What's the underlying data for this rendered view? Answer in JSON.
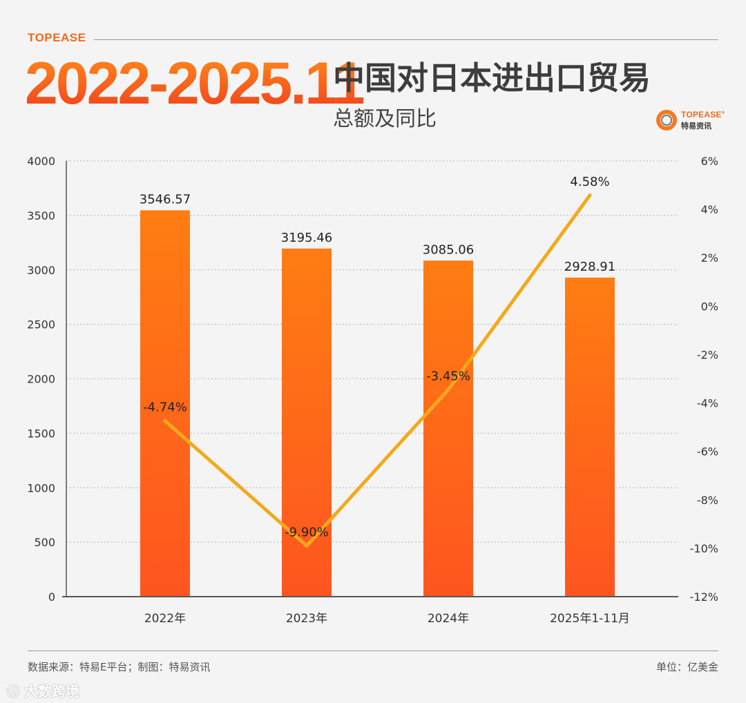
{
  "header": {
    "brand": "TOPEASE",
    "period": "2022-2025.11",
    "title": "中国对日本进出口贸易",
    "subtitle": "总额及同比",
    "logo_text": "TOPEASE",
    "logo_sub": "特易资讯"
  },
  "colors": {
    "bar_top": "#ff7d12",
    "bar_bottom": "#ff5520",
    "line": "#f4a91c",
    "accent": "#f26a1b"
  },
  "chart_data": {
    "type": "bar",
    "categories": [
      "2022年",
      "2023年",
      "2024年",
      "2025年1-11月"
    ],
    "series": [
      {
        "type": "bar",
        "axis": "left",
        "values": [
          3546.57,
          3195.46,
          3085.06,
          2928.91
        ],
        "labels": [
          "3546.57",
          "3195.46",
          "3085.06",
          "2928.91"
        ]
      },
      {
        "type": "line",
        "axis": "right",
        "values": [
          -4.74,
          -9.9,
          -3.45,
          4.58
        ],
        "labels": [
          "-4.74%",
          "-9.90%",
          "-3.45%",
          "4.58%"
        ]
      }
    ],
    "y_left": {
      "range": [
        0,
        4000
      ],
      "ticks": [
        "0",
        "500",
        "1000",
        "1500",
        "2000",
        "2500",
        "3000",
        "3500",
        "4000"
      ]
    },
    "y_right": {
      "range": [
        -12,
        6
      ],
      "ticks": [
        "-12%",
        "-10%",
        "-8%",
        "-6%",
        "-4%",
        "-2%",
        "0%",
        "2%",
        "4%",
        "6%"
      ]
    },
    "grid": true
  },
  "footer": {
    "source": "数据来源：特易E平台；制图：特易资讯",
    "unit": "单位：亿美金"
  },
  "watermark": "大数跨境"
}
